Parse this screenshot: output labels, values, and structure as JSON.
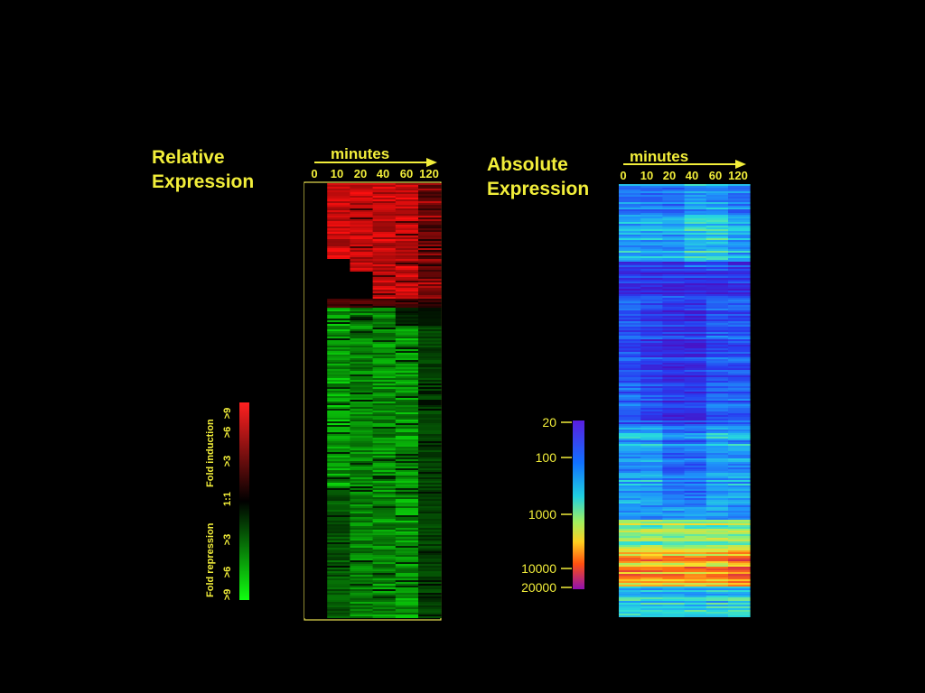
{
  "colors": {
    "background": "#000000",
    "text": "#f2ee3a",
    "induction": "#ff2020",
    "repression": "#10ff10"
  },
  "chart_data": [
    {
      "type": "heatmap",
      "title": [
        "Relative",
        "Expression"
      ],
      "xlabel": "minutes",
      "columns": [
        "0",
        "10",
        "20",
        "40",
        "60",
        "120"
      ],
      "color_scale": "red-black-green",
      "legend": {
        "label_top": "Fold induction",
        "label_bottom": "Fold repression",
        "ticks": [
          ">9",
          ">6",
          ">3",
          "1:1",
          ">3",
          ">6",
          ">9"
        ]
      }
    },
    {
      "type": "heatmap",
      "title": [
        "Absolute",
        "Expression"
      ],
      "xlabel": "minutes",
      "columns": [
        "0",
        "10",
        "20",
        "40",
        "60",
        "120"
      ],
      "color_scale": "rainbow",
      "legend": {
        "ticks": [
          "20",
          "100",
          "1000",
          "10000",
          "20000"
        ]
      }
    }
  ]
}
